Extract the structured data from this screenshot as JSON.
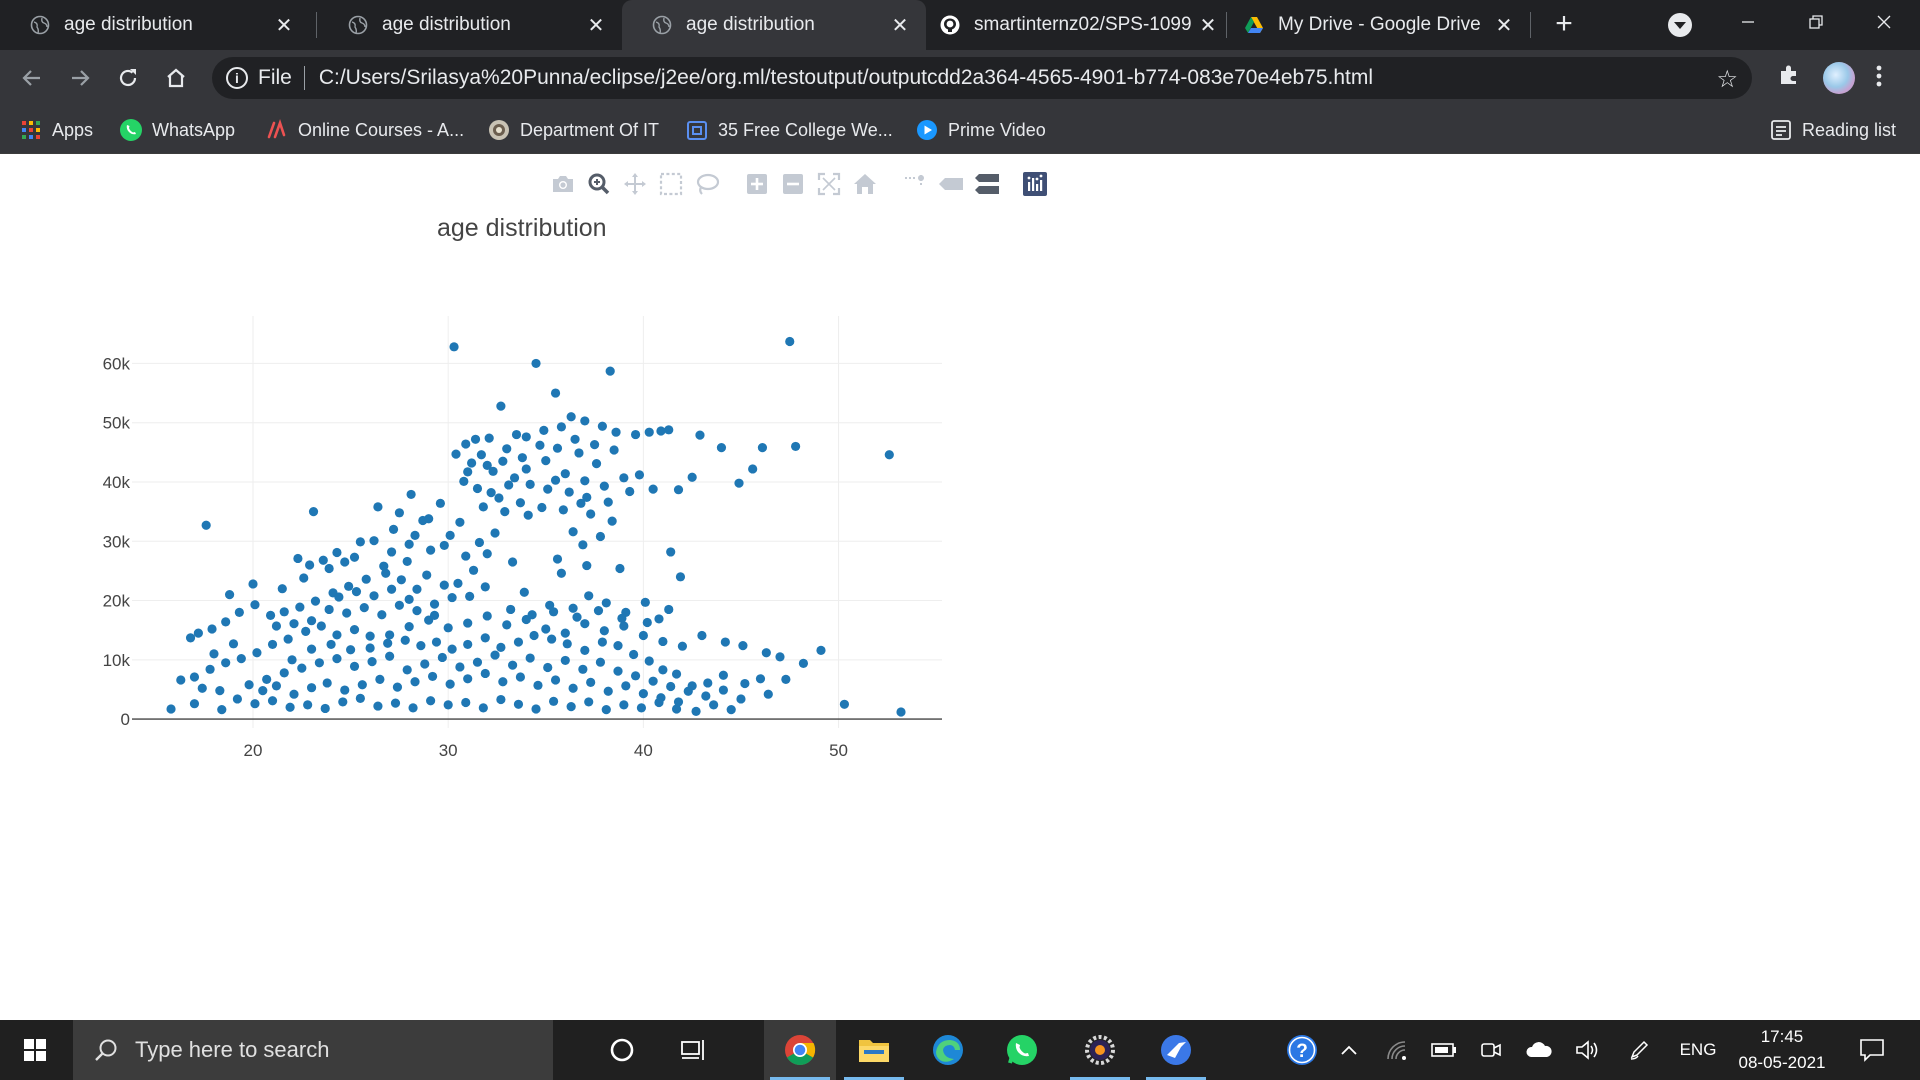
{
  "browser": {
    "tabs": [
      {
        "title": "age distribution",
        "icon": "globe-icon",
        "active": false
      },
      {
        "title": "age distribution",
        "icon": "globe-icon",
        "active": false
      },
      {
        "title": "age distribution",
        "icon": "globe-icon",
        "active": true
      },
      {
        "title": "smartinternz02/SPS-1099",
        "icon": "github-icon",
        "active": false
      },
      {
        "title": "My Drive - Google Drive",
        "icon": "google-drive-icon",
        "active": false
      }
    ],
    "tab_close_glyph": "✕",
    "new_tab_glyph": "+",
    "address": {
      "scheme_label": "File",
      "url": "C:/Users/Srilasya%20Punna/eclipse/j2ee/org.ml/testoutput/outputcdd2a364-4565-4901-b774-083e70e4eb75.html"
    },
    "bookmarks": [
      {
        "label": "Apps",
        "icon": "apps-grid-icon"
      },
      {
        "label": "WhatsApp",
        "icon": "whatsapp-icon"
      },
      {
        "label": "Online Courses - A...",
        "icon": "courses-icon"
      },
      {
        "label": "Department Of IT",
        "icon": "department-logo-icon"
      },
      {
        "label": "35 Free College We...",
        "icon": "bookmark-page-icon"
      },
      {
        "label": "Prime Video",
        "icon": "prime-video-icon"
      }
    ],
    "reading_list_label": "Reading list"
  },
  "taskbar": {
    "search_placeholder": "Type here to search",
    "language": "ENG",
    "time": "17:45",
    "date": "08-05-2021"
  },
  "colors": {
    "marker": "#1f77b4",
    "tab_strip": "#202124",
    "toolbar": "#35363a",
    "taskbar": "#202020"
  },
  "chart_data": {
    "type": "scatter",
    "title": "age distribution",
    "xlabel": "",
    "ylabel": "",
    "xlim": [
      13.8,
      55.3
    ],
    "ylim": [
      -1500,
      68000
    ],
    "xticks": [
      20,
      30,
      40,
      50
    ],
    "xtick_labels": [
      "20",
      "30",
      "40",
      "50"
    ],
    "yticks": [
      0,
      10000,
      20000,
      30000,
      40000,
      50000,
      60000
    ],
    "ytick_labels": [
      "0",
      "10k",
      "20k",
      "30k",
      "40k",
      "50k",
      "60k"
    ],
    "grid": true,
    "legend": "none",
    "marker_color": "#1f77b4",
    "points": [
      [
        30.3,
        62800
      ],
      [
        34.5,
        60000
      ],
      [
        38.3,
        58700
      ],
      [
        47.5,
        63700
      ],
      [
        35.5,
        55000
      ],
      [
        32.7,
        52800
      ],
      [
        52.6,
        44600
      ],
      [
        47.8,
        46000
      ],
      [
        46.1,
        45800
      ],
      [
        45.6,
        42200
      ],
      [
        44.9,
        39800
      ],
      [
        42.5,
        40800
      ],
      [
        41.8,
        38700
      ],
      [
        44.0,
        45800
      ],
      [
        42.9,
        47900
      ],
      [
        41.3,
        48800
      ],
      [
        40.9,
        48600
      ],
      [
        40.3,
        48400
      ],
      [
        39.6,
        48000
      ],
      [
        38.6,
        48400
      ],
      [
        37.9,
        49400
      ],
      [
        37.0,
        50300
      ],
      [
        36.3,
        51000
      ],
      [
        35.8,
        49300
      ],
      [
        34.9,
        48700
      ],
      [
        33.5,
        48000
      ],
      [
        32.1,
        47400
      ],
      [
        31.4,
        47200
      ],
      [
        30.9,
        46400
      ],
      [
        30.4,
        44700
      ],
      [
        31.2,
        43200
      ],
      [
        32.3,
        41800
      ],
      [
        33.4,
        40700
      ],
      [
        34.2,
        39600
      ],
      [
        35.1,
        38800
      ],
      [
        36.2,
        38300
      ],
      [
        37.1,
        37400
      ],
      [
        38.2,
        36600
      ],
      [
        39.3,
        38400
      ],
      [
        39.8,
        41200
      ],
      [
        40.5,
        38800
      ],
      [
        37.6,
        43100
      ],
      [
        36.7,
        44900
      ],
      [
        35.6,
        45700
      ],
      [
        34.7,
        46200
      ],
      [
        33.8,
        44100
      ],
      [
        32.8,
        43500
      ],
      [
        31.7,
        44600
      ],
      [
        30.8,
        40100
      ],
      [
        31.5,
        38900
      ],
      [
        32.6,
        37300
      ],
      [
        33.7,
        36500
      ],
      [
        34.8,
        35700
      ],
      [
        35.9,
        35300
      ],
      [
        37.3,
        34600
      ],
      [
        38.4,
        33400
      ],
      [
        37.8,
        30800
      ],
      [
        36.9,
        29400
      ],
      [
        35.6,
        27000
      ],
      [
        36.4,
        31600
      ],
      [
        34.1,
        34400
      ],
      [
        32.9,
        35000
      ],
      [
        31.8,
        35800
      ],
      [
        30.6,
        33200
      ],
      [
        30.1,
        31000
      ],
      [
        29.8,
        29300
      ],
      [
        29.1,
        28500
      ],
      [
        28.0,
        29500
      ],
      [
        27.1,
        28200
      ],
      [
        26.2,
        30100
      ],
      [
        25.5,
        29900
      ],
      [
        24.3,
        28100
      ],
      [
        23.6,
        26800
      ],
      [
        22.9,
        26000
      ],
      [
        22.3,
        27100
      ],
      [
        26.4,
        35800
      ],
      [
        27.5,
        34800
      ],
      [
        28.1,
        37900
      ],
      [
        28.7,
        33500
      ],
      [
        29.6,
        36400
      ],
      [
        23.1,
        35000
      ],
      [
        17.6,
        32700
      ],
      [
        41.4,
        28200
      ],
      [
        41.9,
        24000
      ],
      [
        38.8,
        25400
      ],
      [
        37.1,
        25900
      ],
      [
        35.8,
        24600
      ],
      [
        33.3,
        26500
      ],
      [
        32.0,
        27900
      ],
      [
        31.3,
        25100
      ],
      [
        30.5,
        22900
      ],
      [
        30.2,
        20500
      ],
      [
        29.3,
        19400
      ],
      [
        28.4,
        21900
      ],
      [
        27.6,
        23500
      ],
      [
        26.8,
        24600
      ],
      [
        25.8,
        23600
      ],
      [
        24.9,
        22400
      ],
      [
        24.1,
        21300
      ],
      [
        23.2,
        19900
      ],
      [
        22.4,
        18900
      ],
      [
        21.6,
        18100
      ],
      [
        20.9,
        17500
      ],
      [
        20.1,
        19300
      ],
      [
        19.3,
        18000
      ],
      [
        18.6,
        16400
      ],
      [
        17.9,
        15200
      ],
      [
        17.2,
        14500
      ],
      [
        16.8,
        13700
      ],
      [
        18.8,
        21000
      ],
      [
        20.0,
        22800
      ],
      [
        21.5,
        22000
      ],
      [
        22.6,
        23800
      ],
      [
        23.9,
        25400
      ],
      [
        24.7,
        26500
      ],
      [
        25.2,
        27300
      ],
      [
        26.7,
        25800
      ],
      [
        27.9,
        26600
      ],
      [
        28.9,
        24300
      ],
      [
        29.8,
        22600
      ],
      [
        31.1,
        20700
      ],
      [
        31.9,
        22300
      ],
      [
        33.9,
        21400
      ],
      [
        35.2,
        19200
      ],
      [
        36.4,
        18700
      ],
      [
        37.2,
        20800
      ],
      [
        38.1,
        19600
      ],
      [
        39.1,
        18000
      ],
      [
        40.1,
        19700
      ],
      [
        40.8,
        16900
      ],
      [
        41.3,
        18500
      ],
      [
        43.0,
        14100
      ],
      [
        44.2,
        13000
      ],
      [
        45.1,
        12400
      ],
      [
        46.3,
        11200
      ],
      [
        47.0,
        10500
      ],
      [
        48.2,
        9400
      ],
      [
        49.1,
        11600
      ],
      [
        50.3,
        2500
      ],
      [
        53.2,
        1200
      ],
      [
        46.4,
        4200
      ],
      [
        45.2,
        6000
      ],
      [
        44.1,
        7400
      ],
      [
        43.3,
        6100
      ],
      [
        42.5,
        5600
      ],
      [
        41.7,
        7600
      ],
      [
        41.0,
        8300
      ],
      [
        40.3,
        9800
      ],
      [
        39.5,
        10900
      ],
      [
        38.7,
        12400
      ],
      [
        37.9,
        13000
      ],
      [
        37.0,
        11600
      ],
      [
        36.1,
        12700
      ],
      [
        35.3,
        13500
      ],
      [
        34.4,
        14100
      ],
      [
        33.6,
        13000
      ],
      [
        32.7,
        12100
      ],
      [
        31.9,
        13700
      ],
      [
        31.0,
        12600
      ],
      [
        30.2,
        11800
      ],
      [
        29.4,
        13000
      ],
      [
        28.6,
        12400
      ],
      [
        27.8,
        13300
      ],
      [
        26.9,
        12800
      ],
      [
        26.0,
        14000
      ],
      [
        25.2,
        15100
      ],
      [
        24.3,
        14200
      ],
      [
        23.5,
        15700
      ],
      [
        22.7,
        14800
      ],
      [
        21.8,
        13500
      ],
      [
        21.0,
        12600
      ],
      [
        20.2,
        11200
      ],
      [
        19.4,
        10200
      ],
      [
        18.6,
        9500
      ],
      [
        17.8,
        8400
      ],
      [
        17.0,
        7100
      ],
      [
        16.3,
        6600
      ],
      [
        17.4,
        5200
      ],
      [
        18.3,
        4800
      ],
      [
        19.2,
        3400
      ],
      [
        20.1,
        2600
      ],
      [
        21.0,
        3100
      ],
      [
        21.9,
        2000
      ],
      [
        22.8,
        2400
      ],
      [
        23.7,
        1800
      ],
      [
        24.6,
        2900
      ],
      [
        25.5,
        3500
      ],
      [
        26.4,
        2200
      ],
      [
        27.3,
        2700
      ],
      [
        28.2,
        1900
      ],
      [
        29.1,
        3100
      ],
      [
        30.0,
        2400
      ],
      [
        30.9,
        2800
      ],
      [
        31.8,
        1900
      ],
      [
        32.7,
        3300
      ],
      [
        33.6,
        2500
      ],
      [
        34.5,
        1700
      ],
      [
        35.4,
        3000
      ],
      [
        36.3,
        2100
      ],
      [
        37.2,
        2900
      ],
      [
        38.1,
        1600
      ],
      [
        39.0,
        2400
      ],
      [
        39.9,
        1900
      ],
      [
        40.8,
        2800
      ],
      [
        41.7,
        1700
      ],
      [
        15.8,
        1700
      ],
      [
        17.0,
        2600
      ],
      [
        18.4,
        1600
      ],
      [
        19.8,
        5800
      ],
      [
        20.7,
        6700
      ],
      [
        21.6,
        7800
      ],
      [
        22.5,
        8600
      ],
      [
        23.4,
        9500
      ],
      [
        24.3,
        10200
      ],
      [
        25.2,
        8900
      ],
      [
        26.1,
        9700
      ],
      [
        27.0,
        10600
      ],
      [
        27.9,
        8300
      ],
      [
        28.8,
        9300
      ],
      [
        29.7,
        10400
      ],
      [
        30.6,
        8800
      ],
      [
        31.5,
        9600
      ],
      [
        32.4,
        10800
      ],
      [
        33.3,
        9100
      ],
      [
        34.2,
        10300
      ],
      [
        35.1,
        8700
      ],
      [
        36.0,
        9900
      ],
      [
        36.9,
        8400
      ],
      [
        37.8,
        9600
      ],
      [
        38.7,
        8100
      ],
      [
        39.6,
        7300
      ],
      [
        40.5,
        6400
      ],
      [
        41.4,
        5500
      ],
      [
        42.3,
        4700
      ],
      [
        43.2,
        3900
      ],
      [
        44.1,
        4900
      ],
      [
        45.0,
        3400
      ],
      [
        46.0,
        6800
      ],
      [
        47.3,
        6700
      ],
      [
        18.0,
        11000
      ],
      [
        19.0,
        12700
      ],
      [
        22.0,
        10000
      ],
      [
        23.0,
        11800
      ],
      [
        24.0,
        12600
      ],
      [
        25.0,
        11700
      ],
      [
        26.0,
        12000
      ],
      [
        27.0,
        14200
      ],
      [
        28.0,
        15600
      ],
      [
        29.0,
        16700
      ],
      [
        30.0,
        15400
      ],
      [
        31.0,
        16200
      ],
      [
        32.0,
        17400
      ],
      [
        33.0,
        15900
      ],
      [
        34.0,
        16800
      ],
      [
        35.0,
        15200
      ],
      [
        36.0,
        14500
      ],
      [
        37.0,
        16100
      ],
      [
        38.0,
        14900
      ],
      [
        39.0,
        15700
      ],
      [
        40.0,
        14100
      ],
      [
        41.0,
        13100
      ],
      [
        42.0,
        12300
      ],
      [
        20.5,
        4800
      ],
      [
        21.2,
        5600
      ],
      [
        22.1,
        4200
      ],
      [
        23.0,
        5300
      ],
      [
        23.8,
        6100
      ],
      [
        24.7,
        4900
      ],
      [
        25.6,
        5800
      ],
      [
        26.5,
        6700
      ],
      [
        27.4,
        5400
      ],
      [
        28.3,
        6300
      ],
      [
        29.2,
        7200
      ],
      [
        30.1,
        5900
      ],
      [
        31.0,
        6800
      ],
      [
        31.9,
        7700
      ],
      [
        32.8,
        6300
      ],
      [
        33.7,
        7100
      ],
      [
        34.6,
        5700
      ],
      [
        35.5,
        6600
      ],
      [
        36.4,
        5200
      ],
      [
        37.3,
        6200
      ],
      [
        38.2,
        4700
      ],
      [
        39.1,
        5600
      ],
      [
        40.0,
        4300
      ],
      [
        40.9,
        3600
      ],
      [
        41.8,
        2900
      ],
      [
        42.7,
        1300
      ],
      [
        43.6,
        2400
      ],
      [
        44.5,
        1600
      ],
      [
        26.6,
        17600
      ],
      [
        27.5,
        19200
      ],
      [
        28.4,
        18300
      ],
      [
        29.3,
        17500
      ],
      [
        25.7,
        18800
      ],
      [
        24.8,
        17900
      ],
      [
        23.9,
        18500
      ],
      [
        23.0,
        16600
      ],
      [
        22.1,
        16100
      ],
      [
        21.2,
        15700
      ],
      [
        24.4,
        20600
      ],
      [
        25.3,
        21500
      ],
      [
        26.2,
        20800
      ],
      [
        27.1,
        21900
      ],
      [
        28.0,
        20200
      ],
      [
        33.2,
        18500
      ],
      [
        34.3,
        17600
      ],
      [
        35.4,
        18100
      ],
      [
        36.6,
        17200
      ],
      [
        37.7,
        18300
      ],
      [
        38.9,
        17000
      ],
      [
        40.2,
        16300
      ],
      [
        30.9,
        27500
      ],
      [
        31.6,
        29800
      ],
      [
        32.4,
        31400
      ],
      [
        28.3,
        31000
      ],
      [
        27.2,
        32000
      ],
      [
        29.0,
        33800
      ],
      [
        32.2,
        38200
      ],
      [
        33.1,
        39500
      ],
      [
        34.0,
        42200
      ],
      [
        35.0,
        43600
      ],
      [
        36.0,
        41400
      ],
      [
        37.0,
        40200
      ],
      [
        38.0,
        39300
      ],
      [
        39.0,
        40700
      ],
      [
        36.5,
        47200
      ],
      [
        37.5,
        46300
      ],
      [
        38.5,
        45400
      ],
      [
        33.0,
        45600
      ],
      [
        34.0,
        47600
      ],
      [
        31.0,
        41700
      ],
      [
        32.0,
        42800
      ],
      [
        35.5,
        40300
      ],
      [
        36.8,
        36400
      ]
    ]
  }
}
